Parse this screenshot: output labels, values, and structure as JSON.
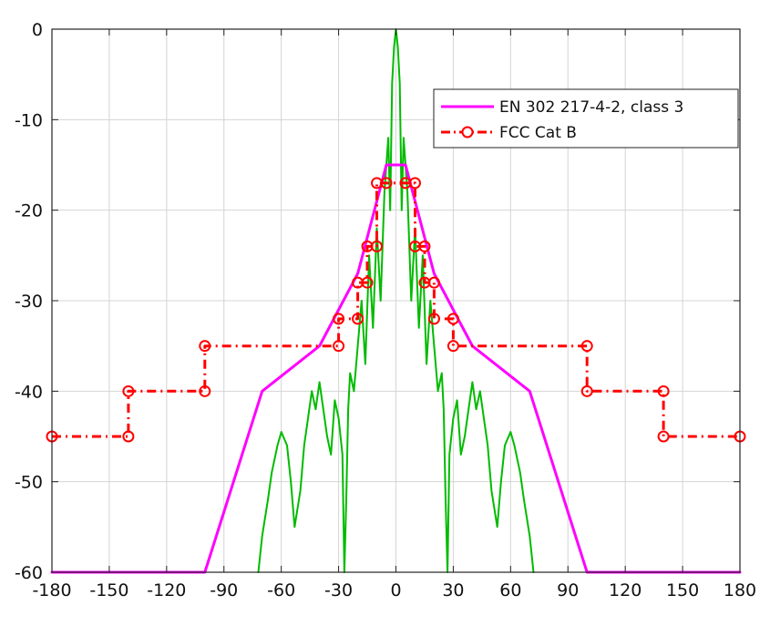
{
  "chart_data": {
    "type": "line",
    "title": "",
    "xlabel": "",
    "ylabel": "",
    "xlim": [
      -180,
      180
    ],
    "ylim": [
      -60,
      0
    ],
    "xticks": [
      -180,
      -150,
      -120,
      -90,
      -60,
      -30,
      0,
      30,
      60,
      90,
      120,
      150,
      180
    ],
    "yticks": [
      0,
      -10,
      -20,
      -30,
      -40,
      -50,
      -60
    ],
    "xtick_labels": [
      "-180",
      "-150",
      "-120",
      "-90",
      "-60",
      "-30",
      "0",
      "30",
      "60",
      "90",
      "120",
      "150",
      "180"
    ],
    "ytick_labels": [
      "0",
      "-10",
      "-20",
      "-30",
      "-40",
      "-50",
      "-60"
    ],
    "grid": true,
    "legend_position": "top-right",
    "series": [
      {
        "name": "EN 302 217-4-2, class 3",
        "color": "#ff00ff",
        "style": "solid",
        "marker": "none",
        "x": [
          -180,
          -100,
          -70,
          -40,
          -20,
          -5,
          5,
          20,
          40,
          70,
          100,
          180
        ],
        "y": [
          -60,
          -60,
          -40,
          -35,
          -27,
          -15,
          -15,
          -27,
          -35,
          -40,
          -60,
          -60
        ]
      },
      {
        "name": "FCC Cat B",
        "color": "#ff0000",
        "style": "dashdot",
        "marker": "circle",
        "x": [
          -180,
          -140,
          -140,
          -100,
          -100,
          -30,
          -30,
          -20,
          -20,
          -15,
          -15,
          -10,
          -10,
          -5,
          5,
          10,
          10,
          15,
          15,
          20,
          20,
          30,
          30,
          100,
          100,
          140,
          140,
          180
        ],
        "y": [
          -45,
          -45,
          -40,
          -40,
          -35,
          -35,
          -32,
          -32,
          -28,
          -28,
          -24,
          -24,
          -17,
          -17,
          -17,
          -17,
          -24,
          -24,
          -28,
          -28,
          -32,
          -32,
          -35,
          -35,
          -40,
          -40,
          -45,
          -45
        ]
      },
      {
        "color": "#00bb00",
        "style": "solid",
        "marker": "none",
        "x": [
          -72,
          -70,
          -67,
          -65,
          -62,
          -60,
          -57,
          -55,
          -53,
          -50,
          -48,
          -46,
          -44,
          -42,
          -40,
          -38,
          -36,
          -34,
          -32,
          -30,
          -28,
          -27,
          -26,
          -25,
          -24,
          -22,
          -20,
          -18,
          -16,
          -14,
          -12,
          -10,
          -8,
          -6,
          -4,
          -3,
          -2,
          -1,
          0,
          1,
          2,
          3,
          4,
          6,
          8,
          10,
          12,
          14,
          16,
          18,
          20,
          22,
          24,
          25,
          26,
          27,
          28,
          30,
          32,
          34,
          36,
          38,
          40,
          42,
          44,
          46,
          48,
          50,
          53,
          55,
          57,
          60,
          62,
          65,
          67,
          70,
          72
        ],
        "y": [
          -60,
          -56,
          -52,
          -49,
          -46,
          -44.5,
          -46,
          -50,
          -55,
          -51,
          -46,
          -43,
          -40,
          -42,
          -39,
          -42,
          -45,
          -47,
          -41,
          -43,
          -47,
          -60,
          -52,
          -42,
          -38,
          -40,
          -35,
          -30,
          -37,
          -25,
          -33,
          -22,
          -30,
          -18,
          -12,
          -20,
          -6,
          -2,
          0,
          -2,
          -6,
          -20,
          -12,
          -18,
          -30,
          -22,
          -33,
          -25,
          -37,
          -30,
          -35,
          -40,
          -38,
          -42,
          -52,
          -60,
          -47,
          -43,
          -41,
          -47,
          -45,
          -42,
          -39,
          -42,
          -40,
          -43,
          -46,
          -51,
          -55,
          -50,
          -46,
          -44.5,
          -46,
          -49,
          -52,
          -56,
          -60
        ]
      }
    ]
  }
}
